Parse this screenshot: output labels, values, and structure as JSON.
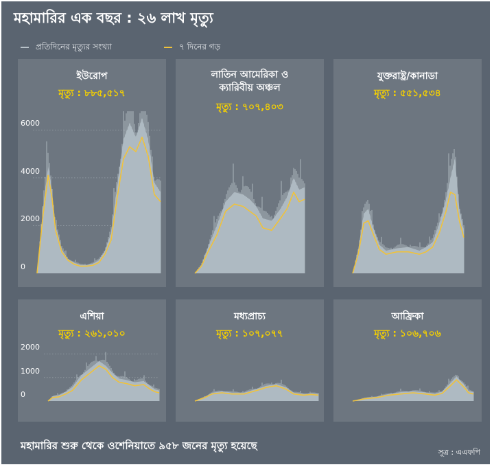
{
  "title": "মহামারির এক বছর : ২৬ লাখ মৃত্যু",
  "legend": {
    "daily": "প্রতিদিনের মৃত্যুর সংখ্যা",
    "avg": "৭ দিনের গড়"
  },
  "colors": {
    "background": "#5a6470",
    "panel": "#6d7680",
    "bars": "#a6b3bb",
    "avg_line": "#f0c23a",
    "death_text": "#f5d000"
  },
  "footer": "মহামারির শুরু থেকে ওশেনিয়াতে ৯৫৮ জনের মৃত্যু হয়েছে",
  "source": "সূত্র : এএফপি",
  "chart_data": [
    {
      "type": "area",
      "region": "ইউরোপ",
      "deaths_label": "মৃত্যু : ৮৮৫,৫১৭",
      "yticks": [
        {
          "v": 0,
          "label": "0"
        },
        {
          "v": 2000,
          "label": "2000"
        },
        {
          "v": 4000,
          "label": "4000"
        },
        {
          "v": 6000,
          "label": "6000"
        }
      ],
      "ylim": [
        0,
        6500
      ],
      "x": [
        0,
        0.05,
        0.09,
        0.12,
        0.15,
        0.2,
        0.25,
        0.3,
        0.35,
        0.4,
        0.45,
        0.5,
        0.55,
        0.6,
        0.65,
        0.7,
        0.75,
        0.8,
        0.85,
        0.9,
        0.95,
        1.0
      ],
      "avg": [
        0,
        2500,
        4100,
        3200,
        1800,
        900,
        550,
        380,
        300,
        300,
        330,
        450,
        800,
        1400,
        3200,
        4800,
        5300,
        5100,
        5700,
        4900,
        3300,
        3000
      ],
      "daily": [
        0,
        2800,
        4500,
        3500,
        2000,
        1000,
        600,
        450,
        350,
        350,
        400,
        550,
        950,
        1700,
        3700,
        5600,
        6300,
        5700,
        6500,
        5600,
        3800,
        3400
      ]
    },
    {
      "type": "area",
      "region": "লাতিন আমেরিকা ও ক্যারিবীয় অঞ্চল",
      "deaths_label": "মৃত্যু : ৭০৭,৪০৩",
      "yticks": [],
      "ylim": [
        0,
        6500
      ],
      "x": [
        0,
        0.06,
        0.12,
        0.2,
        0.28,
        0.36,
        0.44,
        0.5,
        0.56,
        0.62,
        0.7,
        0.78,
        0.84,
        0.9,
        0.95,
        1.0
      ],
      "avg": [
        0,
        300,
        900,
        1600,
        2600,
        2900,
        2800,
        2600,
        2400,
        1900,
        1800,
        2300,
        2700,
        3400,
        3000,
        3100
      ],
      "daily": [
        0,
        350,
        1100,
        2000,
        3000,
        3400,
        3300,
        3100,
        2800,
        2300,
        2200,
        2700,
        3200,
        4000,
        3500,
        3600
      ]
    },
    {
      "type": "area",
      "region": "যুক্তরাষ্ট্র/কানাডা",
      "deaths_label": "মৃত্যু : ৫৫১,৫৩৪",
      "yticks": [],
      "ylim": [
        0,
        6500
      ],
      "x": [
        0,
        0.05,
        0.1,
        0.14,
        0.18,
        0.24,
        0.3,
        0.4,
        0.5,
        0.6,
        0.66,
        0.72,
        0.78,
        0.84,
        0.88,
        0.92,
        0.96,
        1.0
      ],
      "avg": [
        0,
        800,
        2100,
        2200,
        1700,
        1000,
        800,
        900,
        900,
        800,
        900,
        1100,
        1700,
        2600,
        3400,
        3300,
        2200,
        1500
      ],
      "daily": [
        0,
        1000,
        2500,
        2700,
        2000,
        1200,
        950,
        1050,
        1100,
        950,
        1100,
        1300,
        2100,
        3100,
        4000,
        4800,
        2700,
        1800
      ]
    },
    {
      "type": "area",
      "region": "এশিয়া",
      "deaths_label": "মৃত্যু : ২৬১,০১০",
      "yticks": [
        {
          "v": 0,
          "label": "0"
        },
        {
          "v": 1000,
          "label": "1000"
        },
        {
          "v": 2000,
          "label": "2000"
        }
      ],
      "ylim": [
        0,
        2100
      ],
      "x": [
        0,
        0.04,
        0.1,
        0.16,
        0.22,
        0.3,
        0.38,
        0.46,
        0.52,
        0.58,
        0.64,
        0.7,
        0.78,
        0.86,
        0.92,
        0.96,
        1.0
      ],
      "avg": [
        0,
        150,
        180,
        300,
        450,
        900,
        1200,
        1500,
        1350,
        1000,
        800,
        750,
        650,
        700,
        500,
        400,
        350
      ],
      "daily": [
        0,
        200,
        250,
        400,
        600,
        1100,
        1400,
        1700,
        1500,
        1200,
        950,
        900,
        800,
        850,
        650,
        500,
        450
      ]
    },
    {
      "type": "area",
      "region": "মধ্যপ্রাচ্য",
      "deaths_label": "মৃত্যু : ১০৭,০৭৭",
      "yticks": [],
      "ylim": [
        0,
        2100
      ],
      "x": [
        0,
        0.08,
        0.14,
        0.22,
        0.3,
        0.4,
        0.5,
        0.58,
        0.66,
        0.74,
        0.8,
        0.88,
        0.94,
        1.0
      ],
      "avg": [
        0,
        150,
        300,
        350,
        300,
        300,
        450,
        580,
        650,
        500,
        300,
        250,
        280,
        250
      ],
      "daily": [
        0,
        180,
        350,
        420,
        360,
        360,
        520,
        650,
        720,
        580,
        360,
        300,
        330,
        300
      ]
    },
    {
      "type": "area",
      "region": "আফ্রিকা",
      "deaths_label": "মৃত্যু : ১০৬,৭০৬",
      "yticks": [],
      "ylim": [
        0,
        2100
      ],
      "x": [
        0,
        0.1,
        0.2,
        0.3,
        0.4,
        0.5,
        0.6,
        0.68,
        0.74,
        0.8,
        0.86,
        0.92,
        0.96,
        1.0
      ],
      "avg": [
        0,
        100,
        150,
        250,
        300,
        350,
        300,
        250,
        320,
        600,
        900,
        600,
        350,
        300
      ],
      "daily": [
        0,
        130,
        190,
        300,
        380,
        420,
        370,
        310,
        400,
        720,
        1050,
        720,
        430,
        380
      ]
    }
  ]
}
